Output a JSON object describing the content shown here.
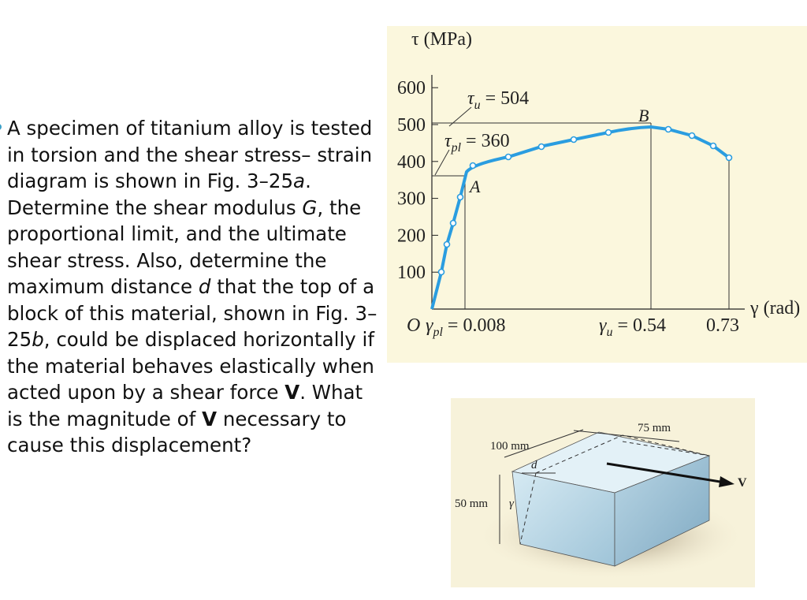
{
  "problem": {
    "segments": [
      "A specimen of titanium alloy is tested in torsion and the shear stress– strain diagram is shown in Fig. 3–25",
      "a",
      ". Determine the shear modulus ",
      "G",
      ", the proportional limit, and the ultimate shear stress. Also, determine the maximum distance ",
      "d",
      " that the top of a block of this material, shown in Fig. 3–25",
      "b",
      ", could be displaced horizontally if the material behaves elastically when acted upon by a shear force ",
      "V",
      ". What is the magnitude of ",
      "V",
      " necessary to cause this displacement?"
    ]
  },
  "figure_a": {
    "y_axis_label": "τ (MPa)",
    "yticks": [
      600,
      500,
      400,
      300,
      200,
      100
    ],
    "tau_u": {
      "symbol": "τ",
      "sub": "u",
      "eq": "= 504"
    },
    "tau_pl": {
      "symbol": "τ",
      "sub": "pl",
      "eq": "= 360"
    },
    "point_a": "A",
    "point_b": "B",
    "origin": "O",
    "gamma_pl": {
      "symbol": "γ",
      "sub": "pl",
      "eq": "= 0.008"
    },
    "gamma_u": {
      "symbol": "γ",
      "sub": "u",
      "eq": "= 0.54"
    },
    "gamma_max": "0.73",
    "x_axis_label": "γ (rad)"
  },
  "figure_b": {
    "width_label": "75 mm",
    "length_label": "100 mm",
    "d_label": "d",
    "height_label": "50 mm",
    "gamma_label": "γ",
    "force_label": "V"
  }
}
